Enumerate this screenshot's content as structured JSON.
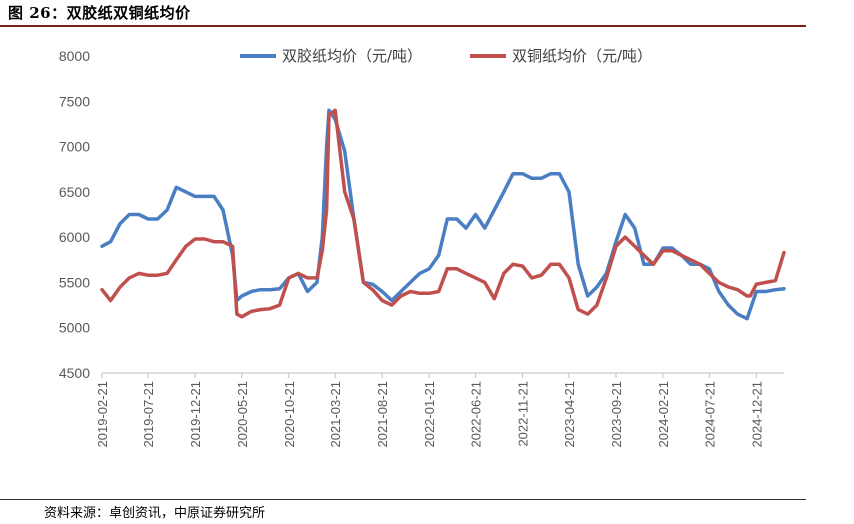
{
  "figure": {
    "title": "图 26：双胶纸双铜纸均价",
    "source": "资料来源：卓创资讯，中原证券研究所"
  },
  "colors": {
    "series1": "#4a7ec3",
    "series2": "#c0504d",
    "axis": "#bfbfbf",
    "text": "#595959"
  },
  "chart_data": {
    "type": "line",
    "xlabel": "",
    "ylabel": "",
    "ylim": [
      4500,
      8000
    ],
    "yticks": [
      4500,
      5000,
      5500,
      6000,
      6500,
      7000,
      7500,
      8000
    ],
    "xlim": [
      "2019-02-21",
      "2025-03-21"
    ],
    "xticks": [
      "2019-02-21",
      "2019-07-21",
      "2019-12-21",
      "2020-05-21",
      "2020-10-21",
      "2021-03-21",
      "2021-08-21",
      "2022-01-21",
      "2022-06-21",
      "2022-11-21",
      "2023-04-21",
      "2023-09-21",
      "2024-02-21",
      "2024-07-21",
      "2024-12-21"
    ],
    "grid": false,
    "legend_position": "top",
    "series": [
      {
        "name": "双胶纸均价（元/吨）",
        "x": [
          "2019-02-21",
          "2019-03-21",
          "2019-04-21",
          "2019-05-21",
          "2019-06-21",
          "2019-07-21",
          "2019-08-21",
          "2019-09-21",
          "2019-10-21",
          "2019-11-21",
          "2019-12-21",
          "2020-01-21",
          "2020-02-21",
          "2020-03-21",
          "2020-04-21",
          "2020-05-05",
          "2020-05-21",
          "2020-06-21",
          "2020-07-21",
          "2020-08-21",
          "2020-09-21",
          "2020-10-21",
          "2020-11-21",
          "2020-12-21",
          "2021-01-21",
          "2021-02-07",
          "2021-02-21",
          "2021-03-01",
          "2021-03-21",
          "2021-04-21",
          "2021-05-21",
          "2021-06-21",
          "2021-07-21",
          "2021-08-21",
          "2021-09-21",
          "2021-10-21",
          "2021-11-21",
          "2021-12-21",
          "2022-01-21",
          "2022-02-21",
          "2022-03-21",
          "2022-04-21",
          "2022-05-21",
          "2022-06-21",
          "2022-07-21",
          "2022-08-21",
          "2022-09-21",
          "2022-10-21",
          "2022-11-21",
          "2022-12-21",
          "2023-01-21",
          "2023-02-21",
          "2023-03-21",
          "2023-04-21",
          "2023-05-21",
          "2023-06-21",
          "2023-07-21",
          "2023-08-21",
          "2023-09-21",
          "2023-10-21",
          "2023-11-21",
          "2023-12-21",
          "2024-01-21",
          "2024-02-21",
          "2024-03-21",
          "2024-04-21",
          "2024-05-21",
          "2024-06-21",
          "2024-07-21",
          "2024-08-21",
          "2024-09-21",
          "2024-10-21",
          "2024-11-21",
          "2024-12-01",
          "2024-12-21",
          "2025-01-21",
          "2025-02-21",
          "2025-03-21"
        ],
        "y": [
          5900,
          5950,
          6150,
          6250,
          6250,
          6200,
          6200,
          6300,
          6550,
          6500,
          6450,
          6450,
          6450,
          6300,
          5800,
          5300,
          5350,
          5400,
          5420,
          5420,
          5430,
          5550,
          5600,
          5400,
          5500,
          6000,
          7000,
          7400,
          7300,
          6950,
          6200,
          5500,
          5480,
          5400,
          5300,
          5400,
          5500,
          5600,
          5650,
          5800,
          6200,
          6200,
          6100,
          6250,
          6100,
          6300,
          6500,
          6700,
          6700,
          6650,
          6650,
          6700,
          6700,
          6500,
          5700,
          5350,
          5450,
          5600,
          5950,
          6250,
          6100,
          5700,
          5700,
          5880,
          5880,
          5800,
          5700,
          5700,
          5650,
          5400,
          5250,
          5150,
          5100,
          5200,
          5400,
          5400,
          5420,
          5430
        ]
      },
      {
        "name": "双铜纸均价（元/吨）",
        "x": [
          "2019-02-21",
          "2019-03-21",
          "2019-04-21",
          "2019-05-21",
          "2019-06-21",
          "2019-07-21",
          "2019-08-21",
          "2019-09-21",
          "2019-10-21",
          "2019-11-21",
          "2019-12-21",
          "2020-01-21",
          "2020-02-21",
          "2020-03-21",
          "2020-04-21",
          "2020-05-05",
          "2020-05-21",
          "2020-06-21",
          "2020-07-21",
          "2020-08-21",
          "2020-09-21",
          "2020-10-21",
          "2020-11-21",
          "2020-12-21",
          "2021-01-21",
          "2021-02-07",
          "2021-02-21",
          "2021-03-01",
          "2021-03-21",
          "2021-04-21",
          "2021-05-21",
          "2021-06-21",
          "2021-07-21",
          "2021-08-21",
          "2021-09-21",
          "2021-10-21",
          "2021-11-21",
          "2021-12-21",
          "2022-01-21",
          "2022-02-21",
          "2022-03-21",
          "2022-04-21",
          "2022-05-21",
          "2022-06-21",
          "2022-07-21",
          "2022-08-21",
          "2022-09-21",
          "2022-10-21",
          "2022-11-21",
          "2022-12-21",
          "2023-01-21",
          "2023-02-21",
          "2023-03-21",
          "2023-04-21",
          "2023-05-21",
          "2023-06-21",
          "2023-07-21",
          "2023-08-21",
          "2023-09-21",
          "2023-10-21",
          "2023-11-21",
          "2023-12-21",
          "2024-01-21",
          "2024-02-21",
          "2024-03-21",
          "2024-04-21",
          "2024-05-21",
          "2024-06-21",
          "2024-07-21",
          "2024-08-21",
          "2024-09-21",
          "2024-10-21",
          "2024-11-21",
          "2024-12-01",
          "2024-12-21",
          "2025-01-21",
          "2025-02-21",
          "2025-03-21"
        ],
        "y": [
          5420,
          5300,
          5450,
          5550,
          5600,
          5580,
          5580,
          5600,
          5750,
          5900,
          5980,
          5980,
          5950,
          5950,
          5900,
          5150,
          5120,
          5180,
          5200,
          5210,
          5250,
          5550,
          5600,
          5550,
          5550,
          5850,
          6300,
          7350,
          7400,
          6500,
          6200,
          5500,
          5420,
          5300,
          5250,
          5350,
          5400,
          5380,
          5380,
          5400,
          5650,
          5650,
          5600,
          5550,
          5500,
          5320,
          5600,
          5700,
          5680,
          5550,
          5580,
          5700,
          5700,
          5550,
          5200,
          5150,
          5250,
          5550,
          5900,
          6000,
          5900,
          5800,
          5700,
          5850,
          5850,
          5800,
          5750,
          5700,
          5600,
          5500,
          5450,
          5420,
          5350,
          5350,
          5480,
          5500,
          5520,
          5830
        ]
      }
    ]
  }
}
